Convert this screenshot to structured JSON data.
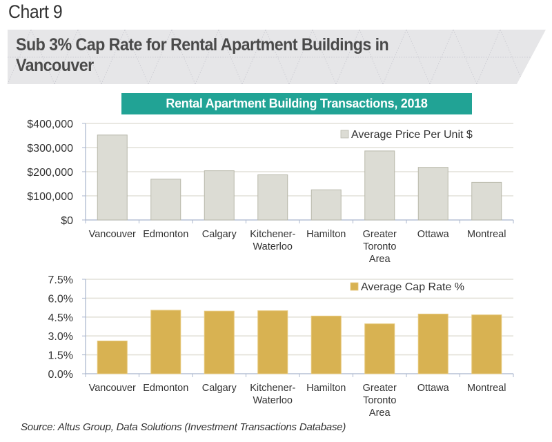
{
  "chart_label": "Chart 9",
  "banner_title_line1": "Sub 3% Cap Rate for Rental Apartment Buildings in",
  "banner_title_line2": "Vancouver",
  "subtitle": "Rental Apartment Building Transactions, 2018",
  "source": "Source: Altus Group, Data Solutions (Investment Transactions Database)",
  "colors": {
    "banner_bg": "#e6e6e8",
    "subtitle_bg": "#21a395",
    "price_bar": "#dcdcd4",
    "price_bar_border": "#b8b8aa",
    "cap_bar": "#d8b252",
    "gridline": "#e2e0d8",
    "axis": "#a8b4cc"
  },
  "chart_data": [
    {
      "type": "bar",
      "title": "Rental Apartment Building Transactions, 2018",
      "xlabel": "",
      "ylabel": "",
      "categories": [
        "Vancouver",
        "Edmonton",
        "Calgary",
        "Kitchener-\nWaterloo",
        "Hamilton",
        "Greater\nToronto\nArea",
        "Ottawa",
        "Montreal"
      ],
      "series": [
        {
          "name": "Average Price Per Unit $",
          "values": [
            352000,
            169000,
            204000,
            187000,
            125000,
            286000,
            218000,
            156000
          ]
        }
      ],
      "ylim": [
        0,
        400000
      ],
      "yticks": [
        0,
        100000,
        200000,
        300000,
        400000
      ],
      "ytick_labels": [
        "$0",
        "$100,000",
        "$200,000",
        "$300,000",
        "$400,000"
      ],
      "grid": true,
      "legend": "top-right"
    },
    {
      "type": "bar",
      "title": "",
      "xlabel": "",
      "ylabel": "",
      "categories": [
        "Vancouver",
        "Edmonton",
        "Calgary",
        "Kitchener-\nWaterloo",
        "Hamilton",
        "Greater\nToronto\nArea",
        "Ottawa",
        "Montreal"
      ],
      "series": [
        {
          "name": "Average Cap Rate %",
          "values": [
            2.6,
            5.04,
            4.97,
            5.0,
            4.58,
            3.96,
            4.74,
            4.67
          ]
        }
      ],
      "ylim": [
        0,
        7.5
      ],
      "yticks": [
        0,
        1.5,
        3.0,
        4.5,
        6.0,
        7.5
      ],
      "ytick_labels": [
        "0.0%",
        "1.5%",
        "3.0%",
        "4.5%",
        "6.0%",
        "7.5%"
      ],
      "grid": true,
      "legend": "top-right"
    }
  ]
}
